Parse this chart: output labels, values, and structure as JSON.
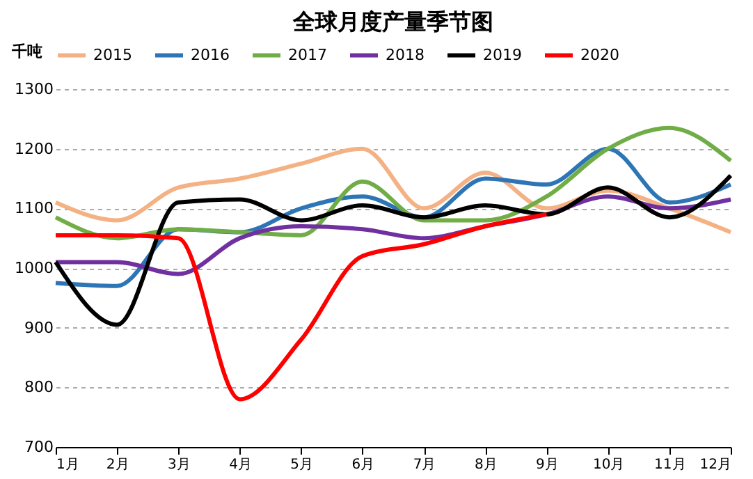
{
  "chart_data": {
    "type": "line",
    "title": "全球月度产量季节图",
    "ylabel": "千吨",
    "categories": [
      "1月",
      "2月",
      "3月",
      "4月",
      "5月",
      "6月",
      "7月",
      "8月",
      "9月",
      "10月",
      "11月",
      "12月"
    ],
    "series": [
      {
        "name": "2015",
        "color": "#f4b183",
        "values": [
          1110,
          1080,
          1135,
          1150,
          1175,
          1200,
          1100,
          1160,
          1100,
          1130,
          1100,
          1060
        ]
      },
      {
        "name": "2016",
        "color": "#2e75b6",
        "values": [
          975,
          970,
          1065,
          1060,
          1100,
          1120,
          1085,
          1150,
          1140,
          1200,
          1110,
          1140
        ]
      },
      {
        "name": "2017",
        "color": "#70ad47",
        "values": [
          1085,
          1050,
          1065,
          1060,
          1055,
          1145,
          1080,
          1080,
          1120,
          1200,
          1235,
          1180
        ]
      },
      {
        "name": "2018",
        "color": "#7030a0",
        "values": [
          1010,
          1010,
          990,
          1050,
          1070,
          1065,
          1050,
          1070,
          1090,
          1120,
          1100,
          1115
        ]
      },
      {
        "name": "2019",
        "color": "#000000",
        "values": [
          1010,
          905,
          1110,
          1115,
          1080,
          1105,
          1085,
          1105,
          1090,
          1135,
          1085,
          1155
        ]
      },
      {
        "name": "2020",
        "color": "#ff0000",
        "values": [
          1055,
          1055,
          1050,
          780,
          880,
          1020,
          1040,
          1070,
          1090,
          null,
          null,
          null
        ]
      }
    ],
    "ylim": [
      700,
      1300
    ],
    "yticks": [
      700,
      800,
      900,
      1000,
      1100,
      1200,
      1300
    ],
    "grid": "y",
    "legend": "top",
    "marker": "none",
    "line_style": "solid"
  }
}
